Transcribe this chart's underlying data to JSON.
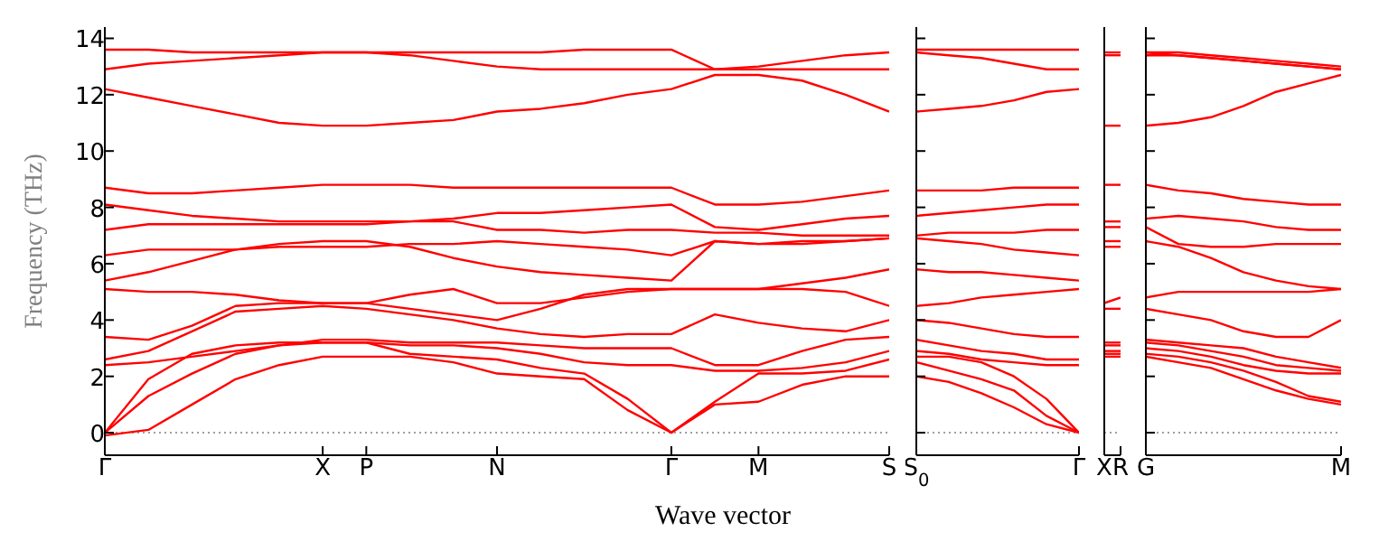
{
  "chart_data": [
    {
      "type": "line",
      "ylabel": "Frequency (THz)",
      "xlabel": "Wave vector",
      "categories": [
        "Γ",
        null,
        null,
        null,
        null,
        "X",
        "P",
        null,
        null,
        "N",
        null,
        null,
        null,
        "Γ",
        null,
        "M",
        null,
        null,
        "S"
      ],
      "ylim": [
        -0.8,
        14.4
      ],
      "yticks": [
        0,
        2,
        4,
        6,
        8,
        10,
        12,
        14
      ],
      "ref_lines": [
        {
          "axis": "y",
          "value": 0,
          "color": "#808080",
          "line_style": "dotted"
        }
      ],
      "marker": "none",
      "series": [
        {
          "color": "#ff0000",
          "values": [
            -0.1,
            0.1,
            1.0,
            1.9,
            2.4,
            2.7,
            2.7,
            2.7,
            2.5,
            2.1,
            2.0,
            1.9,
            0.8,
            0,
            1.0,
            1.1,
            1.7,
            2.0,
            2.0
          ]
        },
        {
          "color": "#ff0000",
          "values": [
            0,
            1.3,
            2.1,
            2.8,
            3.1,
            3.2,
            3.2,
            2.8,
            2.7,
            2.6,
            2.3,
            2.1,
            1.2,
            0,
            1.1,
            2.1,
            2.1,
            2.2,
            2.6
          ]
        },
        {
          "color": "#ff0000",
          "values": [
            0,
            1.9,
            2.8,
            3.1,
            3.2,
            3.2,
            3.2,
            3.1,
            3.1,
            3.0,
            2.8,
            2.5,
            2.4,
            2.4,
            2.2,
            2.2,
            2.3,
            2.5,
            2.9
          ]
        },
        {
          "color": "#ff0000",
          "values": [
            2.4,
            2.5,
            2.7,
            2.9,
            3.1,
            3.3,
            3.3,
            3.2,
            3.2,
            3.2,
            3.1,
            3.0,
            3.0,
            3.0,
            2.4,
            2.4,
            2.9,
            3.3,
            3.4
          ]
        },
        {
          "color": "#ff0000",
          "values": [
            2.6,
            2.9,
            3.6,
            4.3,
            4.4,
            4.5,
            4.4,
            4.2,
            4.0,
            3.7,
            3.5,
            3.4,
            3.5,
            3.5,
            4.2,
            3.9,
            3.7,
            3.6,
            4.0
          ]
        },
        {
          "color": "#ff0000",
          "values": [
            3.4,
            3.3,
            3.8,
            4.5,
            4.6,
            4.6,
            4.6,
            4.9,
            5.1,
            4.6,
            4.6,
            4.8,
            5.0,
            5.1,
            5.1,
            5.1,
            5.1,
            5.0,
            4.5
          ]
        },
        {
          "color": "#ff0000",
          "values": [
            5.1,
            5.0,
            5.0,
            4.9,
            4.7,
            4.6,
            4.6,
            4.4,
            4.2,
            4.0,
            4.4,
            4.9,
            5.1,
            5.1,
            5.1,
            5.1,
            5.3,
            5.5,
            5.8
          ]
        },
        {
          "color": "#ff0000",
          "values": [
            5.4,
            5.7,
            6.1,
            6.5,
            6.7,
            6.8,
            6.8,
            6.6,
            6.2,
            5.9,
            5.7,
            5.6,
            5.5,
            5.4,
            6.8,
            6.7,
            6.7,
            6.8,
            6.9
          ]
        },
        {
          "color": "#ff0000",
          "values": [
            6.3,
            6.5,
            6.5,
            6.5,
            6.6,
            6.6,
            6.6,
            6.7,
            6.7,
            6.8,
            6.7,
            6.6,
            6.5,
            6.3,
            6.8,
            6.7,
            6.8,
            6.8,
            6.9
          ]
        },
        {
          "color": "#ff0000",
          "values": [
            7.2,
            7.4,
            7.4,
            7.4,
            7.4,
            7.4,
            7.4,
            7.5,
            7.5,
            7.2,
            7.2,
            7.1,
            7.2,
            7.2,
            7.1,
            7.1,
            7.0,
            7.0,
            7.0
          ]
        },
        {
          "color": "#ff0000",
          "values": [
            8.1,
            7.9,
            7.7,
            7.6,
            7.5,
            7.5,
            7.5,
            7.5,
            7.6,
            7.8,
            7.8,
            7.9,
            8.0,
            8.1,
            7.3,
            7.2,
            7.4,
            7.6,
            7.7
          ]
        },
        {
          "color": "#ff0000",
          "values": [
            8.7,
            8.5,
            8.5,
            8.6,
            8.7,
            8.8,
            8.8,
            8.8,
            8.7,
            8.7,
            8.7,
            8.7,
            8.7,
            8.7,
            8.1,
            8.1,
            8.2,
            8.4,
            8.6
          ]
        },
        {
          "color": "#ff0000",
          "values": [
            12.2,
            11.9,
            11.6,
            11.3,
            11.0,
            10.9,
            10.9,
            11.0,
            11.1,
            11.4,
            11.5,
            11.7,
            12.0,
            12.2,
            12.7,
            12.7,
            12.5,
            12.0,
            11.4
          ]
        },
        {
          "color": "#ff0000",
          "values": [
            12.9,
            13.1,
            13.2,
            13.3,
            13.4,
            13.5,
            13.5,
            13.4,
            13.2,
            13.0,
            12.9,
            12.9,
            12.9,
            12.9,
            12.9,
            12.9,
            12.9,
            12.9,
            12.9
          ]
        },
        {
          "color": "#ff0000",
          "values": [
            13.6,
            13.6,
            13.5,
            13.5,
            13.5,
            13.5,
            13.5,
            13.5,
            13.5,
            13.5,
            13.5,
            13.6,
            13.6,
            13.6,
            12.9,
            13.0,
            13.2,
            13.4,
            13.5
          ]
        }
      ]
    },
    {
      "type": "line",
      "categories": [
        "S$_{0}$",
        null,
        null,
        null,
        null,
        "Γ"
      ],
      "ylim": [
        -0.8,
        14.4
      ],
      "yticks": [
        0,
        2,
        4,
        6,
        8,
        10,
        12,
        14
      ],
      "tick_labels": "x",
      "ref_lines": [
        {
          "axis": "y",
          "value": 0,
          "color": "#808080",
          "line_style": "dotted"
        }
      ],
      "marker": "none",
      "series": [
        {
          "color": "#ff0000",
          "values": [
            2.0,
            1.8,
            1.4,
            0.9,
            0.3,
            0
          ]
        },
        {
          "color": "#ff0000",
          "values": [
            2.5,
            2.2,
            1.9,
            1.5,
            0.6,
            0
          ]
        },
        {
          "color": "#ff0000",
          "values": [
            2.7,
            2.7,
            2.5,
            2.0,
            1.2,
            0
          ]
        },
        {
          "color": "#ff0000",
          "values": [
            2.9,
            2.8,
            2.6,
            2.5,
            2.4,
            2.4
          ]
        },
        {
          "color": "#ff0000",
          "values": [
            3.3,
            3.1,
            2.9,
            2.8,
            2.6,
            2.6
          ]
        },
        {
          "color": "#ff0000",
          "values": [
            4.0,
            3.9,
            3.7,
            3.5,
            3.4,
            3.4
          ]
        },
        {
          "color": "#ff0000",
          "values": [
            4.5,
            4.6,
            4.8,
            4.9,
            5.0,
            5.1
          ]
        },
        {
          "color": "#ff0000",
          "values": [
            5.8,
            5.7,
            5.7,
            5.6,
            5.5,
            5.4
          ]
        },
        {
          "color": "#ff0000",
          "values": [
            6.9,
            6.8,
            6.7,
            6.5,
            6.4,
            6.3
          ]
        },
        {
          "color": "#ff0000",
          "values": [
            7.0,
            7.1,
            7.1,
            7.1,
            7.2,
            7.2
          ]
        },
        {
          "color": "#ff0000",
          "values": [
            7.7,
            7.8,
            7.9,
            8.0,
            8.1,
            8.1
          ]
        },
        {
          "color": "#ff0000",
          "values": [
            8.6,
            8.6,
            8.6,
            8.7,
            8.7,
            8.7
          ]
        },
        {
          "color": "#ff0000",
          "values": [
            11.4,
            11.5,
            11.6,
            11.8,
            12.1,
            12.2
          ]
        },
        {
          "color": "#ff0000",
          "values": [
            13.5,
            13.4,
            13.3,
            13.1,
            12.9,
            12.9
          ]
        },
        {
          "color": "#ff0000",
          "values": [
            13.6,
            13.6,
            13.6,
            13.6,
            13.6,
            13.6
          ]
        }
      ]
    },
    {
      "type": "line",
      "categories": [
        "X",
        "R"
      ],
      "ylim": [
        -0.8,
        14.4
      ],
      "yticks": [
        0,
        2,
        4,
        6,
        8,
        10,
        12,
        14
      ],
      "tick_labels": "x",
      "ref_lines": [
        {
          "axis": "y",
          "value": 0,
          "color": "#808080",
          "line_style": "dotted"
        }
      ],
      "marker": "none",
      "series": [
        {
          "color": "#ff0000",
          "values": [
            2.7,
            2.7
          ]
        },
        {
          "color": "#ff0000",
          "values": [
            2.8,
            2.8
          ]
        },
        {
          "color": "#ff0000",
          "values": [
            2.9,
            2.9
          ]
        },
        {
          "color": "#ff0000",
          "values": [
            3.1,
            3.1
          ]
        },
        {
          "color": "#ff0000",
          "values": [
            3.2,
            3.2
          ]
        },
        {
          "color": "#ff0000",
          "values": [
            4.4,
            4.4
          ]
        },
        {
          "color": "#ff0000",
          "values": [
            4.6,
            4.8
          ]
        },
        {
          "color": "#ff0000",
          "values": [
            6.6,
            6.6
          ]
        },
        {
          "color": "#ff0000",
          "values": [
            6.8,
            6.8
          ]
        },
        {
          "color": "#ff0000",
          "values": [
            7.3,
            7.3
          ]
        },
        {
          "color": "#ff0000",
          "values": [
            7.5,
            7.5
          ]
        },
        {
          "color": "#ff0000",
          "values": [
            8.8,
            8.8
          ]
        },
        {
          "color": "#ff0000",
          "values": [
            10.9,
            10.9
          ]
        },
        {
          "color": "#ff0000",
          "values": [
            13.4,
            13.4
          ]
        },
        {
          "color": "#ff0000",
          "values": [
            13.5,
            13.5
          ]
        }
      ]
    },
    {
      "type": "line",
      "categories": [
        "G",
        null,
        null,
        null,
        null,
        null,
        "M"
      ],
      "ylim": [
        -0.8,
        14.4
      ],
      "yticks": [
        0,
        2,
        4,
        6,
        8,
        10,
        12,
        14
      ],
      "tick_labels": "x",
      "ref_lines": [
        {
          "axis": "y",
          "value": 0,
          "color": "#808080",
          "line_style": "dotted"
        }
      ],
      "marker": "none",
      "series": [
        {
          "color": "#ff0000",
          "values": [
            2.7,
            2.5,
            2.3,
            1.9,
            1.5,
            1.2,
            1.0
          ]
        },
        {
          "color": "#ff0000",
          "values": [
            2.8,
            2.7,
            2.5,
            2.2,
            1.8,
            1.3,
            1.1
          ]
        },
        {
          "color": "#ff0000",
          "values": [
            3.0,
            2.9,
            2.7,
            2.4,
            2.2,
            2.1,
            2.1
          ]
        },
        {
          "color": "#ff0000",
          "values": [
            3.2,
            3.1,
            2.9,
            2.7,
            2.4,
            2.3,
            2.2
          ]
        },
        {
          "color": "#ff0000",
          "values": [
            3.3,
            3.2,
            3.1,
            3.0,
            2.7,
            2.5,
            2.3
          ]
        },
        {
          "color": "#ff0000",
          "values": [
            4.4,
            4.2,
            4.0,
            3.6,
            3.4,
            3.4,
            4.0
          ]
        },
        {
          "color": "#ff0000",
          "values": [
            4.8,
            5.0,
            5.0,
            5.0,
            5.0,
            5.0,
            5.1
          ]
        },
        {
          "color": "#ff0000",
          "values": [
            6.8,
            6.6,
            6.2,
            5.7,
            5.4,
            5.2,
            5.1
          ]
        },
        {
          "color": "#ff0000",
          "values": [
            7.3,
            6.7,
            6.6,
            6.6,
            6.7,
            6.7,
            6.7
          ]
        },
        {
          "color": "#ff0000",
          "values": [
            7.6,
            7.7,
            7.6,
            7.5,
            7.3,
            7.2,
            7.2
          ]
        },
        {
          "color": "#ff0000",
          "values": [
            8.8,
            8.6,
            8.5,
            8.3,
            8.2,
            8.1,
            8.1
          ]
        },
        {
          "color": "#ff0000",
          "values": [
            10.9,
            11.0,
            11.2,
            11.6,
            12.1,
            12.4,
            12.7
          ]
        },
        {
          "color": "#ff0000",
          "values": [
            13.4,
            13.4,
            13.3,
            13.2,
            13.1,
            13.0,
            12.9
          ]
        },
        {
          "color": "#ff0000",
          "values": [
            13.5,
            13.4,
            13.3,
            13.2,
            13.1,
            13.0,
            12.9
          ]
        },
        {
          "color": "#ff0000",
          "values": [
            13.5,
            13.5,
            13.4,
            13.3,
            13.2,
            13.1,
            13.0
          ]
        }
      ]
    }
  ]
}
